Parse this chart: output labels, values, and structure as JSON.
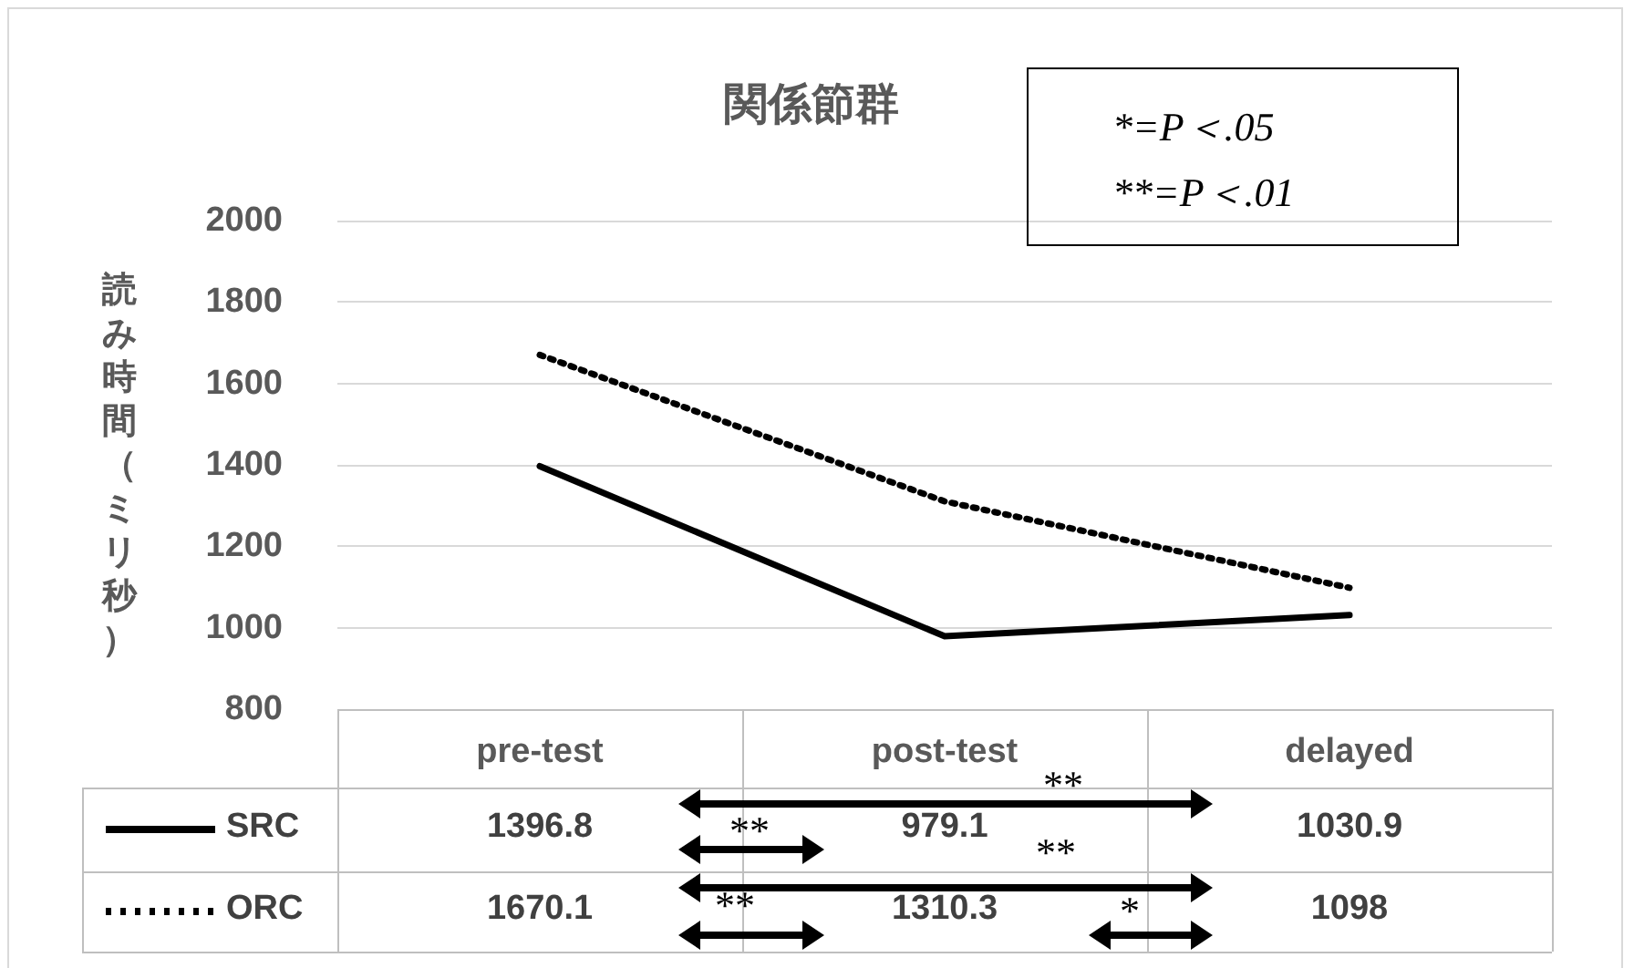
{
  "chart_data": {
    "type": "line",
    "title": "関係節群",
    "ylabel": "読み時間（ミリ秒）",
    "categories": [
      "pre-test",
      "post-test",
      "delayed"
    ],
    "series": [
      {
        "name": "SRC",
        "color": "#000000",
        "line_style": "solid",
        "values": [
          1396.8,
          979.1,
          1030.9
        ]
      },
      {
        "name": "ORC",
        "color": "#000000",
        "line_style": "dotted",
        "values": [
          1670.1,
          1310.3,
          1098
        ]
      }
    ],
    "ylim": [
      800,
      2000
    ],
    "yticks": [
      800,
      1000,
      1200,
      1400,
      1600,
      1800,
      2000
    ],
    "grid": "y",
    "legend": "bottom left",
    "data_labels": true,
    "annotations": [
      "*=P＜.05",
      "**=P＜.01",
      "**",
      "**",
      "**",
      "**",
      "*"
    ]
  }
}
